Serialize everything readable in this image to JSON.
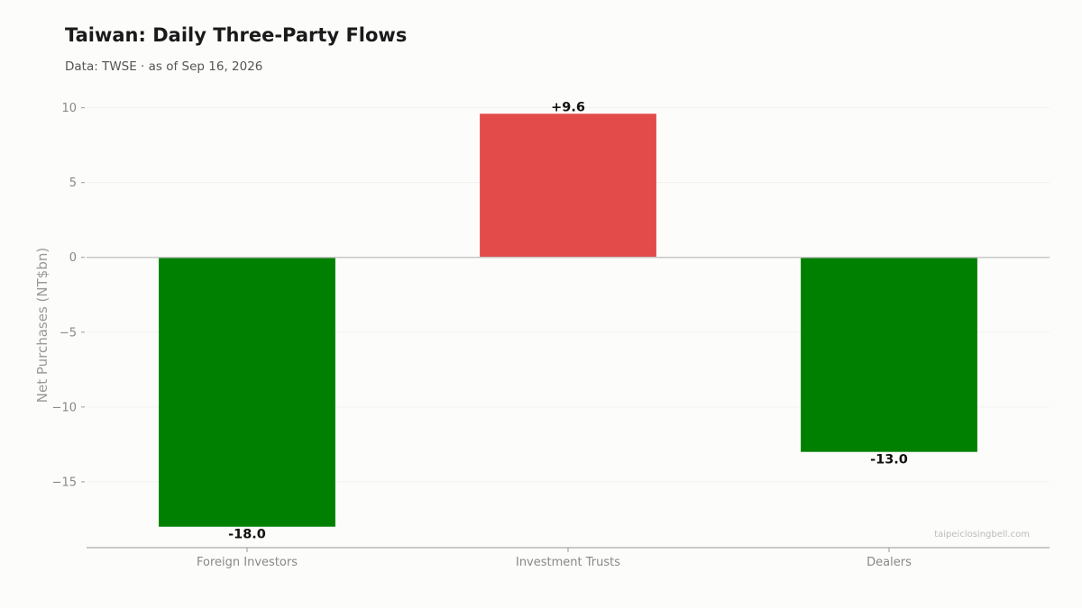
{
  "header": {
    "title": "Taiwan: Daily Three-Party Flows",
    "subtitle": "Data: TWSE · as of Sep 16, 2026"
  },
  "watermark": "taipeiclosingbell.com",
  "colors": {
    "positive": "#e34a4a",
    "negative": "#008000",
    "zero_line": "#c8c8c8",
    "grid": "#f1f1ee",
    "axis": "#999999"
  },
  "chart_data": {
    "type": "bar",
    "title": "Taiwan: Daily Three-Party Flows",
    "subtitle": "Data: TWSE · as of Sep 16, 2026",
    "xlabel": "",
    "ylabel": "Net Purchases (NT$bn)",
    "categories": [
      "Foreign Investors",
      "Investment Trusts",
      "Dealers"
    ],
    "values": [
      -18.0,
      9.6,
      -13.0
    ],
    "data_labels": [
      "-18.0",
      "+9.6",
      "-13.0"
    ],
    "yticks": [
      10,
      5,
      0,
      -5,
      -10,
      -15
    ],
    "ytick_labels": [
      "10",
      "5",
      "0",
      "−5",
      "−10",
      "−15"
    ],
    "ylim": [
      -19.4,
      10.7
    ],
    "grid": true,
    "legend": "none"
  }
}
